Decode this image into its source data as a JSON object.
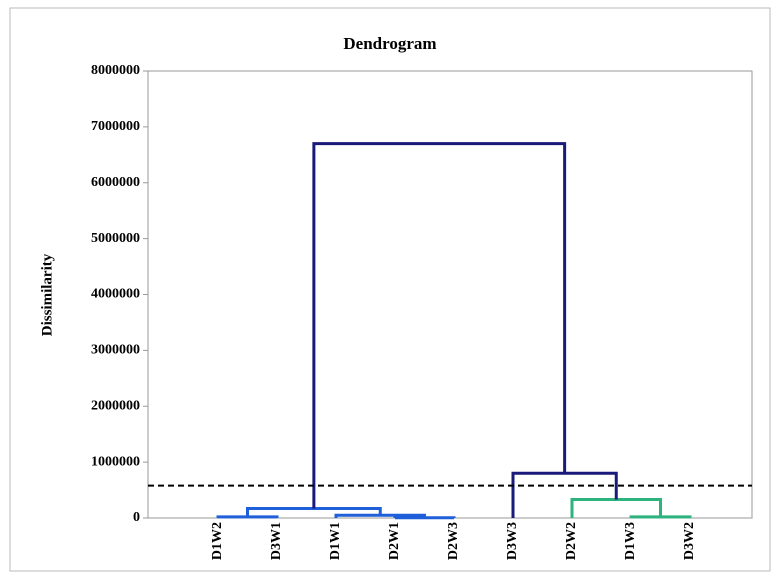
{
  "chart_data": {
    "type": "dendrogram",
    "title": "Dendrogram",
    "y_label": "Dissimilarity",
    "categories": [
      "D1W2",
      "D3W1",
      "D1W1",
      "D2W1",
      "D2W3",
      "D3W3",
      "D2W2",
      "D1W3",
      "D3W2"
    ],
    "merges": [
      {
        "left": 0,
        "right": 1,
        "height": 20000,
        "color": "#1f5fd9"
      },
      {
        "left": 3,
        "right": 4,
        "height": 5000,
        "color": "#1f5fd9"
      },
      {
        "left": 2,
        "right": 10,
        "height": 50000,
        "color": "#1f5fd9"
      },
      {
        "left": 9,
        "right": 11,
        "height": 170000,
        "color": "#1f5fd9"
      },
      {
        "left": 7,
        "right": 8,
        "height": 20000,
        "color": "#2db37e"
      },
      {
        "left": 6,
        "right": 13,
        "height": 330000,
        "color": "#2db37e"
      },
      {
        "left": 5,
        "right": 14,
        "height": 800000,
        "color": "#1a1a7a"
      },
      {
        "left": 12,
        "right": 15,
        "height": 6700000,
        "color": "#1a1a7a"
      }
    ],
    "cutoff": 580000,
    "ylim": [
      0,
      8000000
    ],
    "yticks": [
      0,
      1000000,
      2000000,
      3000000,
      4000000,
      5000000,
      6000000,
      7000000,
      8000000
    ]
  }
}
